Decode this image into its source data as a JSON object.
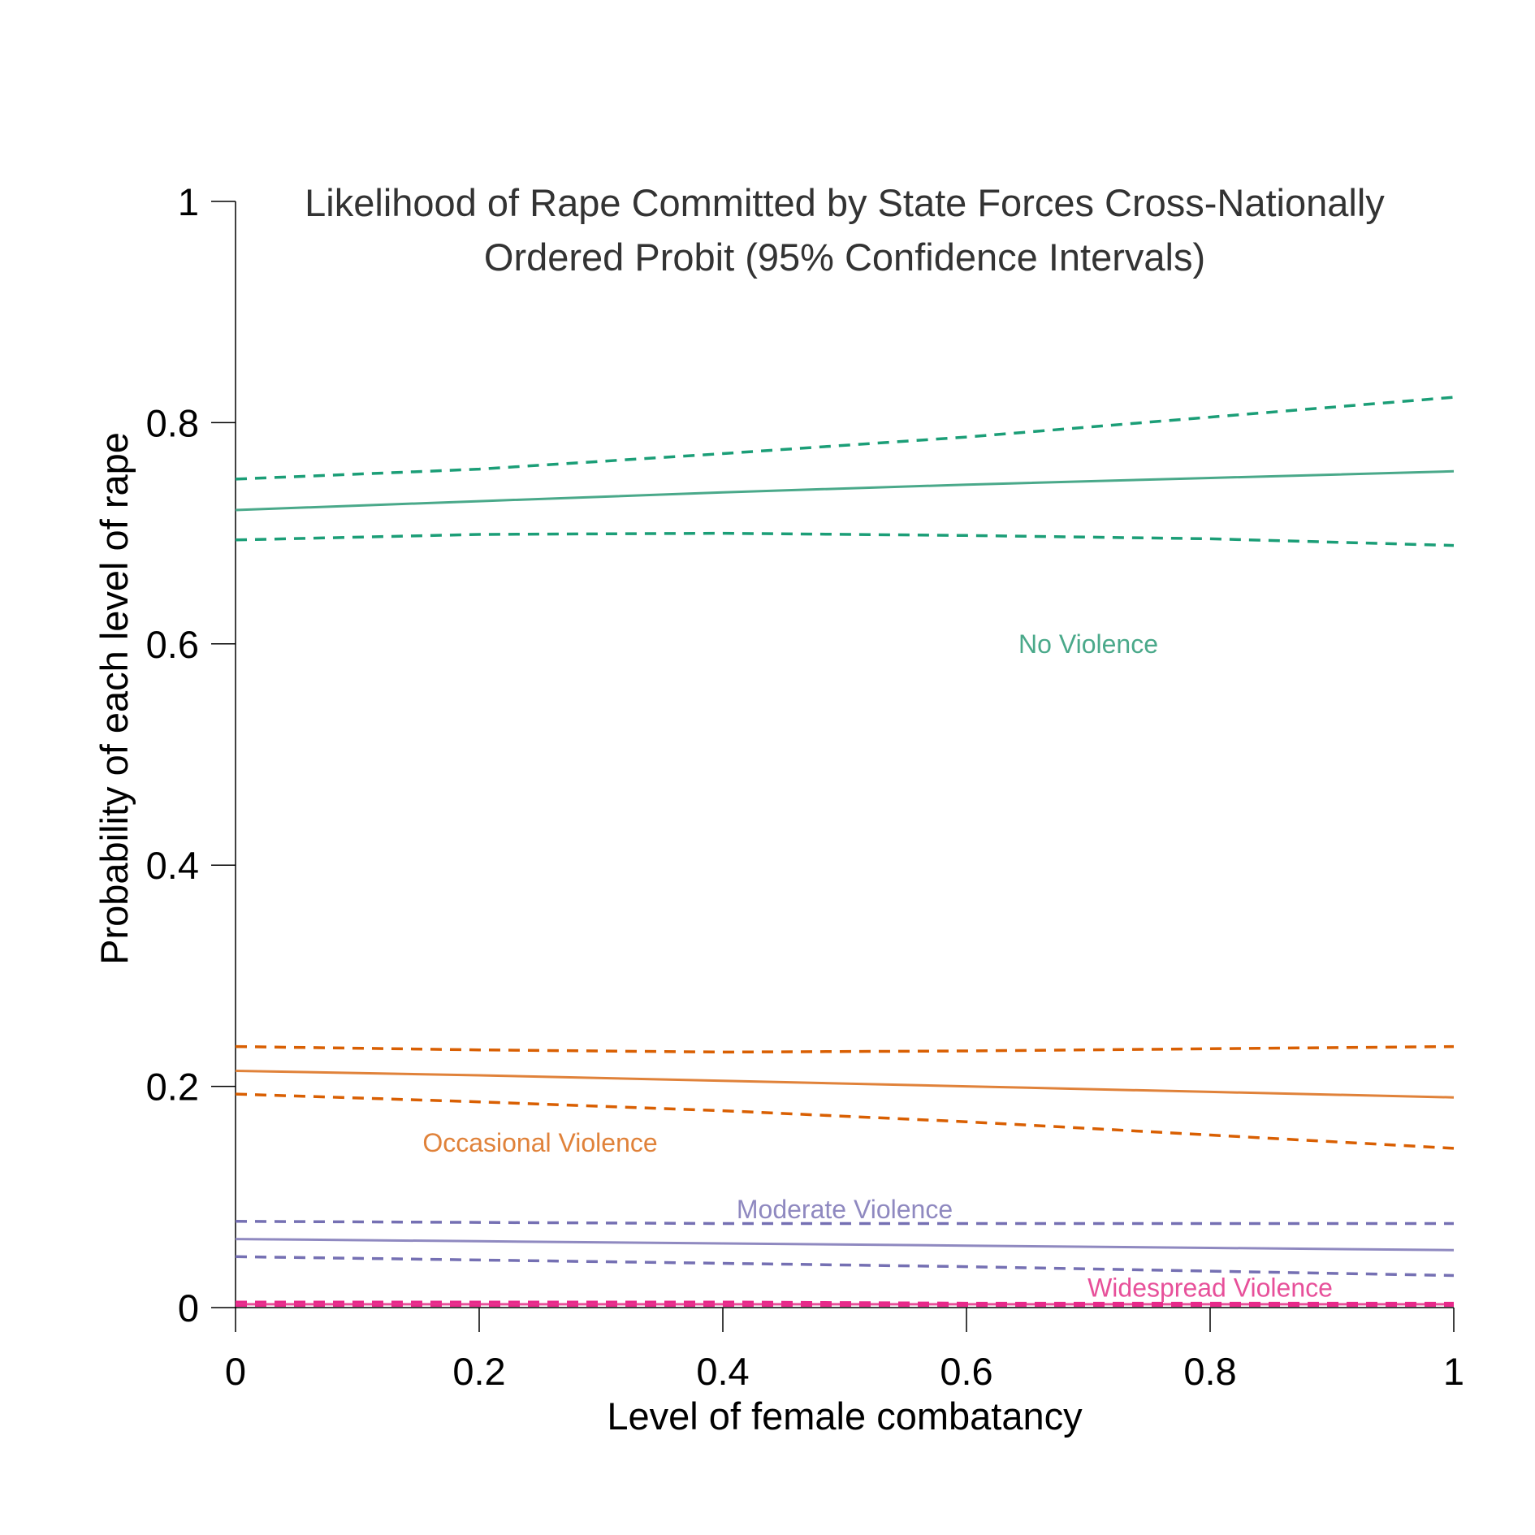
{
  "chart_data": {
    "type": "line",
    "title": [
      "Likelihood of Rape Committed by State Forces Cross-Nationally",
      "Ordered Probit (95% Confidence Intervals)"
    ],
    "xlabel": "Level of female combatancy",
    "ylabel": "Probability of each level of rape",
    "xlim": [
      0,
      1
    ],
    "ylim": [
      0,
      1
    ],
    "xticks": [
      0,
      0.2,
      0.4,
      0.6,
      0.8,
      1
    ],
    "xtick_labels": [
      "0",
      "0.2",
      "0.4",
      "0.6",
      "0.8",
      "1"
    ],
    "yticks": [
      0,
      0.2,
      0.4,
      0.6,
      0.8,
      1
    ],
    "ytick_labels": [
      "0",
      "0.2",
      "0.4",
      "0.6",
      "0.8",
      "1"
    ],
    "grid": false,
    "legend": "inline labels",
    "x": [
      0,
      0.2,
      0.4,
      0.6,
      0.8,
      1
    ],
    "series": [
      {
        "name": "No Violence",
        "role": "estimate",
        "style": "solid",
        "color": "#4aa98a",
        "values": [
          0.721,
          0.729,
          0.737,
          0.744,
          0.75,
          0.756
        ]
      },
      {
        "name": "No Violence upper CI",
        "role": "upper",
        "style": "dashed",
        "color": "#1b9e77",
        "values": [
          0.749,
          0.758,
          0.772,
          0.787,
          0.805,
          0.823
        ]
      },
      {
        "name": "No Violence lower CI",
        "role": "lower",
        "style": "dashed",
        "color": "#1b9e77",
        "values": [
          0.694,
          0.699,
          0.7,
          0.698,
          0.695,
          0.689
        ]
      },
      {
        "name": "Occasional Violence",
        "role": "estimate",
        "style": "solid",
        "color": "#e0823a",
        "values": [
          0.214,
          0.21,
          0.205,
          0.2,
          0.195,
          0.19
        ]
      },
      {
        "name": "Occasional Violence upper CI",
        "role": "upper",
        "style": "dashed",
        "color": "#d95f02",
        "values": [
          0.236,
          0.233,
          0.231,
          0.232,
          0.234,
          0.236
        ]
      },
      {
        "name": "Occasional Violence lower CI",
        "role": "lower",
        "style": "dashed",
        "color": "#d95f02",
        "values": [
          0.193,
          0.186,
          0.178,
          0.168,
          0.156,
          0.144
        ]
      },
      {
        "name": "Moderate Violence",
        "role": "estimate",
        "style": "solid",
        "color": "#8f89c0",
        "values": [
          0.062,
          0.06,
          0.058,
          0.056,
          0.054,
          0.052
        ]
      },
      {
        "name": "Moderate Violence upper CI",
        "role": "upper",
        "style": "dashed",
        "color": "#7570b3",
        "values": [
          0.078,
          0.077,
          0.076,
          0.076,
          0.076,
          0.076
        ]
      },
      {
        "name": "Moderate Violence lower CI",
        "role": "lower",
        "style": "dashed",
        "color": "#7570b3",
        "values": [
          0.046,
          0.043,
          0.04,
          0.037,
          0.033,
          0.029
        ]
      },
      {
        "name": "Widespread Violence",
        "role": "estimate",
        "style": "solid",
        "color": "#e7509a",
        "values": [
          0.003,
          0.003,
          0.003,
          0.003,
          0.003,
          0.003
        ]
      },
      {
        "name": "Widespread Violence upper CI",
        "role": "upper",
        "style": "dashed",
        "color": "#e7298a",
        "values": [
          0.005,
          0.005,
          0.005,
          0.004,
          0.004,
          0.004
        ]
      },
      {
        "name": "Widespread Violence lower CI",
        "role": "lower",
        "style": "dashed",
        "color": "#e7298a",
        "values": [
          0.002,
          0.002,
          0.002,
          0.002,
          0.002,
          0.002
        ]
      }
    ],
    "annotations": [
      {
        "text": "No Violence",
        "x": 0.7,
        "y": 0.6,
        "color": "#4aa98a"
      },
      {
        "text": "Occasional Violence",
        "x": 0.25,
        "y": 0.149,
        "color": "#e0823a"
      },
      {
        "text": "Moderate Violence",
        "x": 0.5,
        "y": 0.089,
        "color": "#8f89c0"
      },
      {
        "text": "Widespread Violence",
        "x": 0.8,
        "y": 0.018,
        "color": "#e7509a"
      }
    ]
  }
}
